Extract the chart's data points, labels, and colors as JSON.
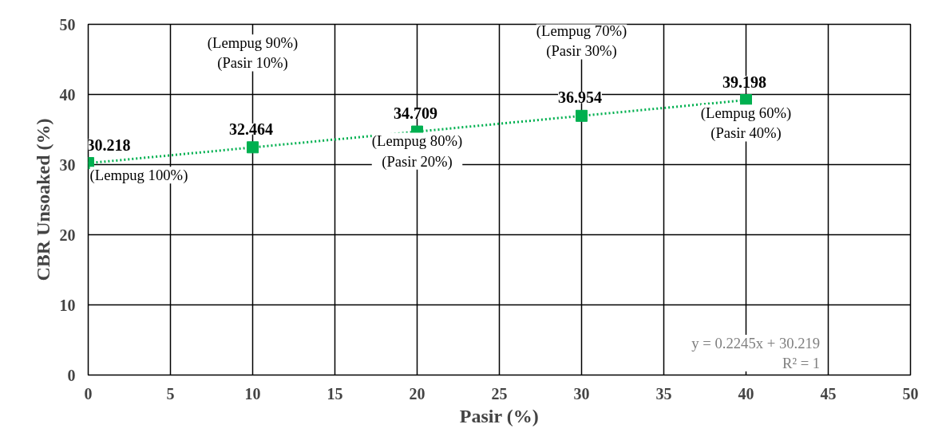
{
  "chart_data": {
    "type": "scatter",
    "xlabel": "Pasir (%)",
    "ylabel": "CBR Unsoaked (%)",
    "x": [
      0,
      10,
      20,
      30,
      40
    ],
    "series": [
      {
        "color": "#00b050",
        "values": [
          30.218,
          32.464,
          34.709,
          36.954,
          39.198
        ],
        "marker": "square",
        "data_labels": true
      },
      {
        "type": "line",
        "color": "#00b050",
        "x": [
          0,
          40
        ],
        "values": [
          30.2,
          39.2
        ],
        "marker": "none",
        "line_style": "dotted"
      }
    ],
    "xlim": [
      0,
      50
    ],
    "ylim": [
      0,
      50
    ],
    "xticks": [
      0,
      5,
      10,
      15,
      20,
      25,
      30,
      35,
      40,
      45,
      50
    ],
    "yticks": [
      0,
      10,
      20,
      30,
      40,
      50
    ],
    "grid": true,
    "annotations": [
      "(Lempug 100%)",
      "(Lempug 90%)\n(Pasir 10%)",
      "(Lempug 80%)\n(Pasir 20%)",
      "(Lempug 70%)\n(Pasir 30%)",
      "(Lempug 60%)\n(Pasir 40%)",
      "y = 0.2245x + 30.219\nR² = 1"
    ]
  }
}
